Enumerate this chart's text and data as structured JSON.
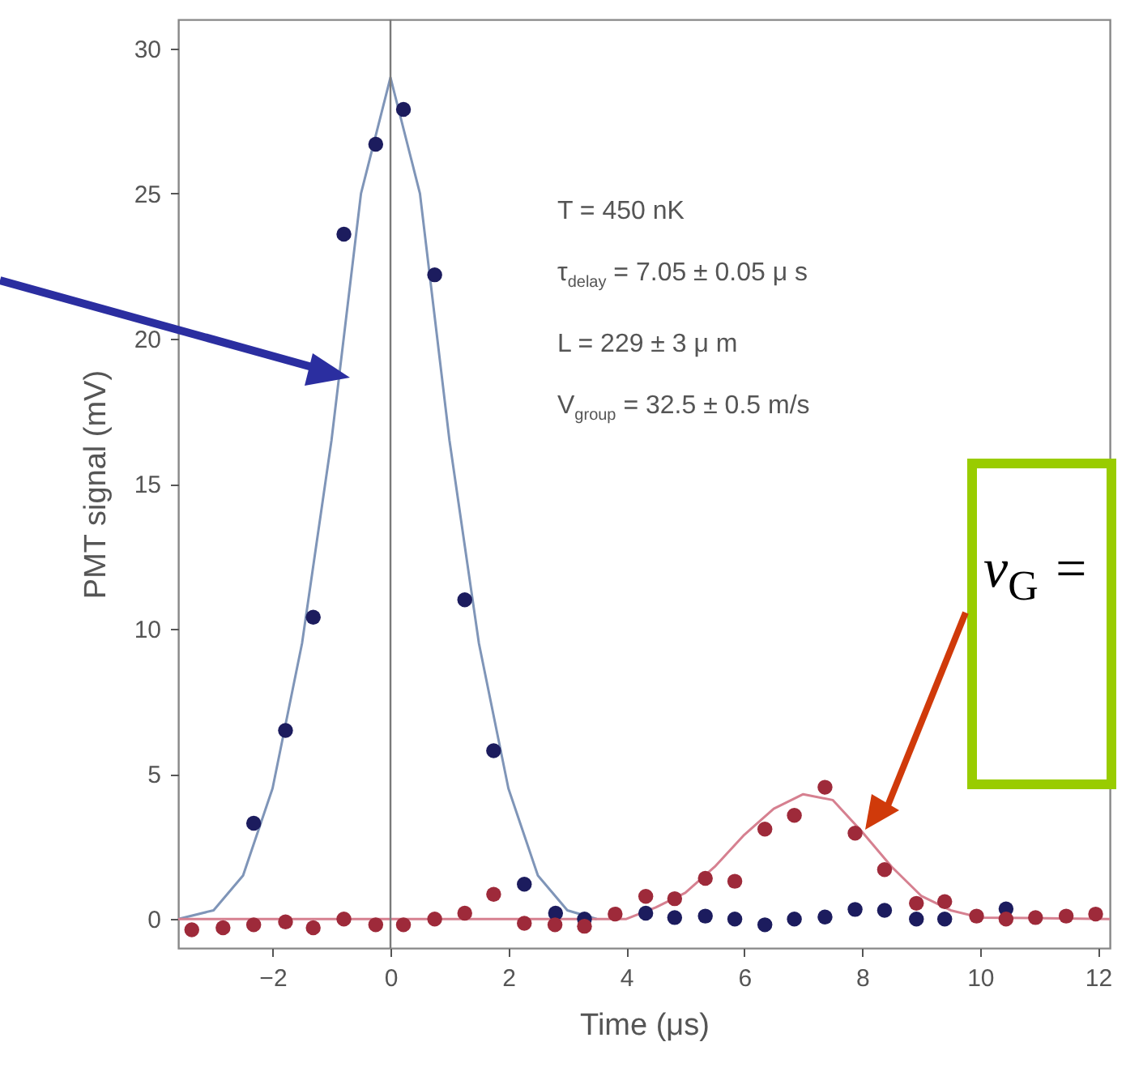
{
  "chart_data": {
    "type": "scatter",
    "xlabel": "Time (μs)",
    "ylabel": "PMT signal (mV)",
    "xlim": [
      -3.6,
      12.2
    ],
    "ylim": [
      -1,
      31
    ],
    "xticks": [
      -2,
      0,
      2,
      4,
      6,
      8,
      10,
      12
    ],
    "yticks": [
      0,
      5,
      10,
      15,
      20,
      25,
      30
    ],
    "grid": false,
    "marker": "circle",
    "ref_lines": [
      {
        "axis": "x",
        "value": 0,
        "color": "#7a7a7a"
      }
    ],
    "annotations": [
      "T = 450 nK",
      "τ$_{delay}$ = 7.05 ± 0.05 μ s",
      "L = 229 ± 3 μ m",
      "V$_{group}$ = 32.5 ± 0.5 m/s",
      "v$_{G}$ ="
    ],
    "series": [
      {
        "type": "line",
        "color": "#7f95b8",
        "marker": "none",
        "line_style": "solid",
        "x": [
          -3.6,
          -3,
          -2.5,
          -2,
          -1.5,
          -1,
          -0.5,
          0,
          0.5,
          1,
          1.5,
          2,
          2.5,
          3,
          3.5
        ],
        "values": [
          0,
          0.3,
          1.5,
          4.5,
          9.5,
          16.5,
          25,
          29,
          25,
          16.5,
          9.5,
          4.5,
          1.5,
          0.3,
          0
        ]
      },
      {
        "type": "line",
        "color": "#d68090",
        "marker": "none",
        "line_style": "solid",
        "x": [
          -3.6,
          4,
          4.5,
          5,
          5.5,
          6,
          6.5,
          7,
          7.5,
          8,
          8.5,
          9,
          9.5,
          10,
          12.2
        ],
        "values": [
          0,
          0,
          0.4,
          0.9,
          1.8,
          2.9,
          3.8,
          4.3,
          4.1,
          3,
          1.8,
          0.8,
          0.3,
          0.05,
          0
        ]
      },
      {
        "color": "#1c1c5e",
        "x": [
          -2.32,
          -1.78,
          -1.31,
          -0.79,
          -0.25,
          0.22,
          0.75,
          1.26,
          1.75,
          2.27,
          2.8,
          3.29,
          4.33,
          4.82,
          5.34,
          5.84,
          6.35,
          6.85,
          7.37,
          7.88,
          8.38,
          8.92,
          9.4,
          10.44
        ],
        "values": [
          3.3,
          6.5,
          10.4,
          23.6,
          26.7,
          27.9,
          22.2,
          11,
          5.8,
          1.2,
          0.2,
          0,
          0.2,
          0.05,
          0.1,
          0,
          -0.2,
          0,
          0.07,
          0.33,
          0.3,
          0,
          0,
          0.35
        ]
      },
      {
        "color": "#9e2a3a",
        "x": [
          -3.37,
          -2.84,
          -2.32,
          -1.78,
          -1.31,
          -0.79,
          -0.25,
          0.22,
          0.75,
          1.26,
          1.75,
          2.27,
          2.79,
          3.29,
          3.81,
          4.33,
          4.82,
          5.34,
          5.84,
          6.35,
          6.85,
          7.37,
          7.88,
          8.38,
          8.92,
          9.4,
          9.94,
          10.44,
          10.94,
          11.46,
          11.96
        ],
        "values": [
          -0.37,
          -0.3,
          -0.2,
          -0.1,
          -0.3,
          0,
          -0.2,
          -0.2,
          0,
          0.2,
          0.85,
          -0.15,
          -0.2,
          -0.25,
          0.17,
          0.78,
          0.7,
          1.4,
          1.3,
          3.1,
          3.57,
          4.54,
          2.96,
          1.7,
          0.54,
          0.6,
          0.1,
          0,
          0.05,
          0.1,
          0.17
        ]
      }
    ]
  }
}
